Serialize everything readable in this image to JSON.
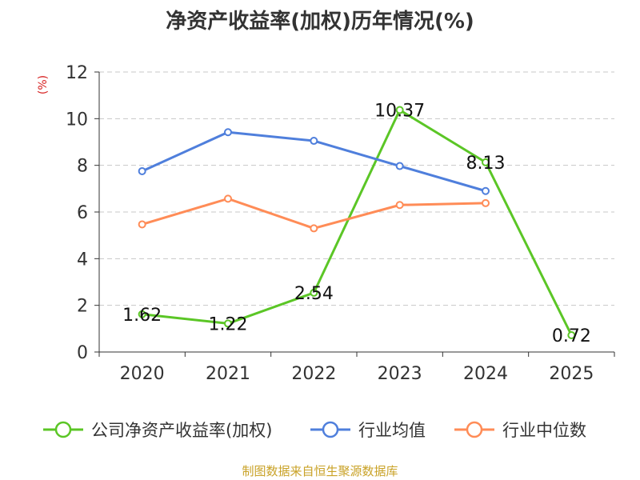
{
  "chart_data": {
    "type": "line",
    "title": "净资产收益率(加权)历年情况(%)",
    "ylabel": "(%)",
    "xlabel": "",
    "categories": [
      "2020",
      "2021",
      "2022",
      "2023",
      "2024",
      "2025"
    ],
    "ylim": [
      0,
      12
    ],
    "yticks": [
      0,
      2,
      4,
      6,
      8,
      10,
      12
    ],
    "grid": true,
    "legend_position": "bottom",
    "series": [
      {
        "name": "公司净资产收益率(加权)",
        "color": "#5bc626",
        "values": [
          1.62,
          1.22,
          2.54,
          10.37,
          8.13,
          0.72
        ],
        "labels": true
      },
      {
        "name": "行业均值",
        "color": "#4f7fdc",
        "values": [
          7.75,
          9.42,
          9.05,
          7.97,
          6.9,
          null
        ],
        "labels": false
      },
      {
        "name": "行业中位数",
        "color": "#ff8c57",
        "values": [
          5.47,
          6.57,
          5.3,
          6.3,
          6.38,
          null
        ],
        "labels": false
      }
    ]
  },
  "footer": {
    "source": "制图数据来自恒生聚源数据库"
  }
}
